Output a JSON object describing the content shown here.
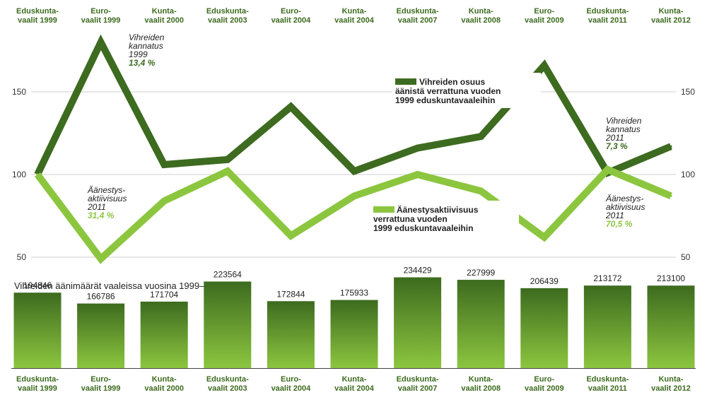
{
  "chart_data": [
    {
      "type": "line",
      "categories": [
        [
          "Eduskunta-",
          "vaalit 1999"
        ],
        [
          "Euro-",
          "vaalit 1999"
        ],
        [
          "Kunta-",
          "vaalit 2000"
        ],
        [
          "Eduskunta-",
          "vaalit 2003"
        ],
        [
          "Euro-",
          "vaalit 2004"
        ],
        [
          "Kunta-",
          "vaalit 2004"
        ],
        [
          "Eduskunta-",
          "vaalit 2007"
        ],
        [
          "Kunta-",
          "vaalit 2008"
        ],
        [
          "Euro-",
          "vaalit 2009"
        ],
        [
          "Eduskunta-",
          "vaalit 2011"
        ],
        [
          "Kunta-",
          "vaalit 2012"
        ]
      ],
      "ylim": [
        50,
        200
      ],
      "yticks": [
        50,
        100,
        150
      ],
      "series": [
        {
          "name": [
            "Vihreiden osuus",
            "äänistä verrattuna vuoden",
            "1999 eduskuntavaaleihin"
          ],
          "color": "#3d6b1f",
          "values": [
            100,
            180,
            106,
            109,
            141,
            102,
            116,
            123,
            166,
            101,
            117
          ]
        },
        {
          "name": [
            "Äänestysaktiivisuus",
            "verrattuna vuoden",
            "1999 eduskuntavaaleihin"
          ],
          "color": "#8cc63f",
          "values": [
            100,
            49,
            84,
            102,
            63,
            87,
            100,
            90,
            62,
            103,
            87
          ]
        }
      ],
      "annotations": [
        {
          "lines": [
            "Vihreiden",
            "kannatus",
            "1999"
          ],
          "value": "13,4 %",
          "style": "dark"
        },
        {
          "lines": [
            "Äänestys-",
            "aktiivisuus",
            "2011"
          ],
          "value": "31,4 %",
          "style": "light"
        },
        {
          "lines": [
            "Vihreiden",
            "kannatus",
            "2011"
          ],
          "value": "7,3 %",
          "style": "dark"
        },
        {
          "lines": [
            "Äänestys-",
            "aktiivisuus",
            "2011"
          ],
          "value": "70,5 %",
          "style": "light"
        }
      ]
    },
    {
      "type": "bar",
      "title": "Vihreiden äänimäärät vaaleissa vuosina 1999–2012",
      "categories": [
        [
          "Eduskunta-",
          "vaalit 1999"
        ],
        [
          "Euro-",
          "vaalit 1999"
        ],
        [
          "Kunta-",
          "vaalit 2000"
        ],
        [
          "Eduskunta-",
          "vaalit 2003"
        ],
        [
          "Euro-",
          "vaalit 2004"
        ],
        [
          "Kunta-",
          "vaalit 2004"
        ],
        [
          "Eduskunta-",
          "vaalit 2007"
        ],
        [
          "Kunta-",
          "vaalit 2008"
        ],
        [
          "Euro-",
          "vaalit 2009"
        ],
        [
          "Eduskunta-",
          "vaalit 2011"
        ],
        [
          "Kunta-",
          "vaalit 2012"
        ]
      ],
      "values": [
        194846,
        166786,
        171704,
        223564,
        172844,
        175933,
        234429,
        227999,
        206439,
        213172,
        213100
      ],
      "ylim": [
        0,
        250000
      ],
      "colors": {
        "top": "#3d6b1f",
        "bottom": "#8cc63f"
      }
    }
  ]
}
